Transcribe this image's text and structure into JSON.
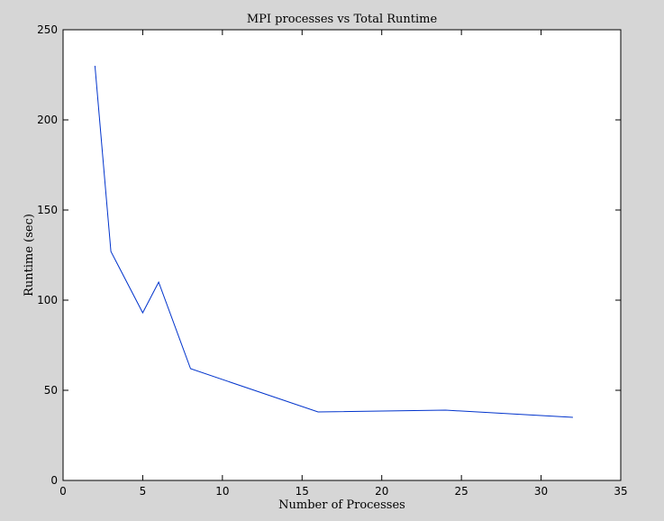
{
  "chart_data": {
    "type": "line",
    "title": "MPI processes vs Total Runtime",
    "xlabel": "Number of Processes",
    "ylabel": "Runtime (sec)",
    "xlim": [
      0,
      35
    ],
    "ylim": [
      0,
      250
    ],
    "x_ticks": [
      0,
      5,
      10,
      15,
      20,
      25,
      30,
      35
    ],
    "y_ticks": [
      0,
      50,
      100,
      150,
      200,
      250
    ],
    "grid": false,
    "legend": "none",
    "series": [
      {
        "color": "#0033cc",
        "points": [
          {
            "x": 2,
            "y": 230
          },
          {
            "x": 3,
            "y": 127
          },
          {
            "x": 5,
            "y": 93
          },
          {
            "x": 6,
            "y": 110
          },
          {
            "x": 8,
            "y": 62
          },
          {
            "x": 16,
            "y": 38
          },
          {
            "x": 24,
            "y": 39
          },
          {
            "x": 32,
            "y": 35
          }
        ]
      }
    ]
  },
  "colors": {
    "figure_background": "#d6d6d6",
    "plot_background": "#ffffff",
    "axis": "#000000"
  }
}
